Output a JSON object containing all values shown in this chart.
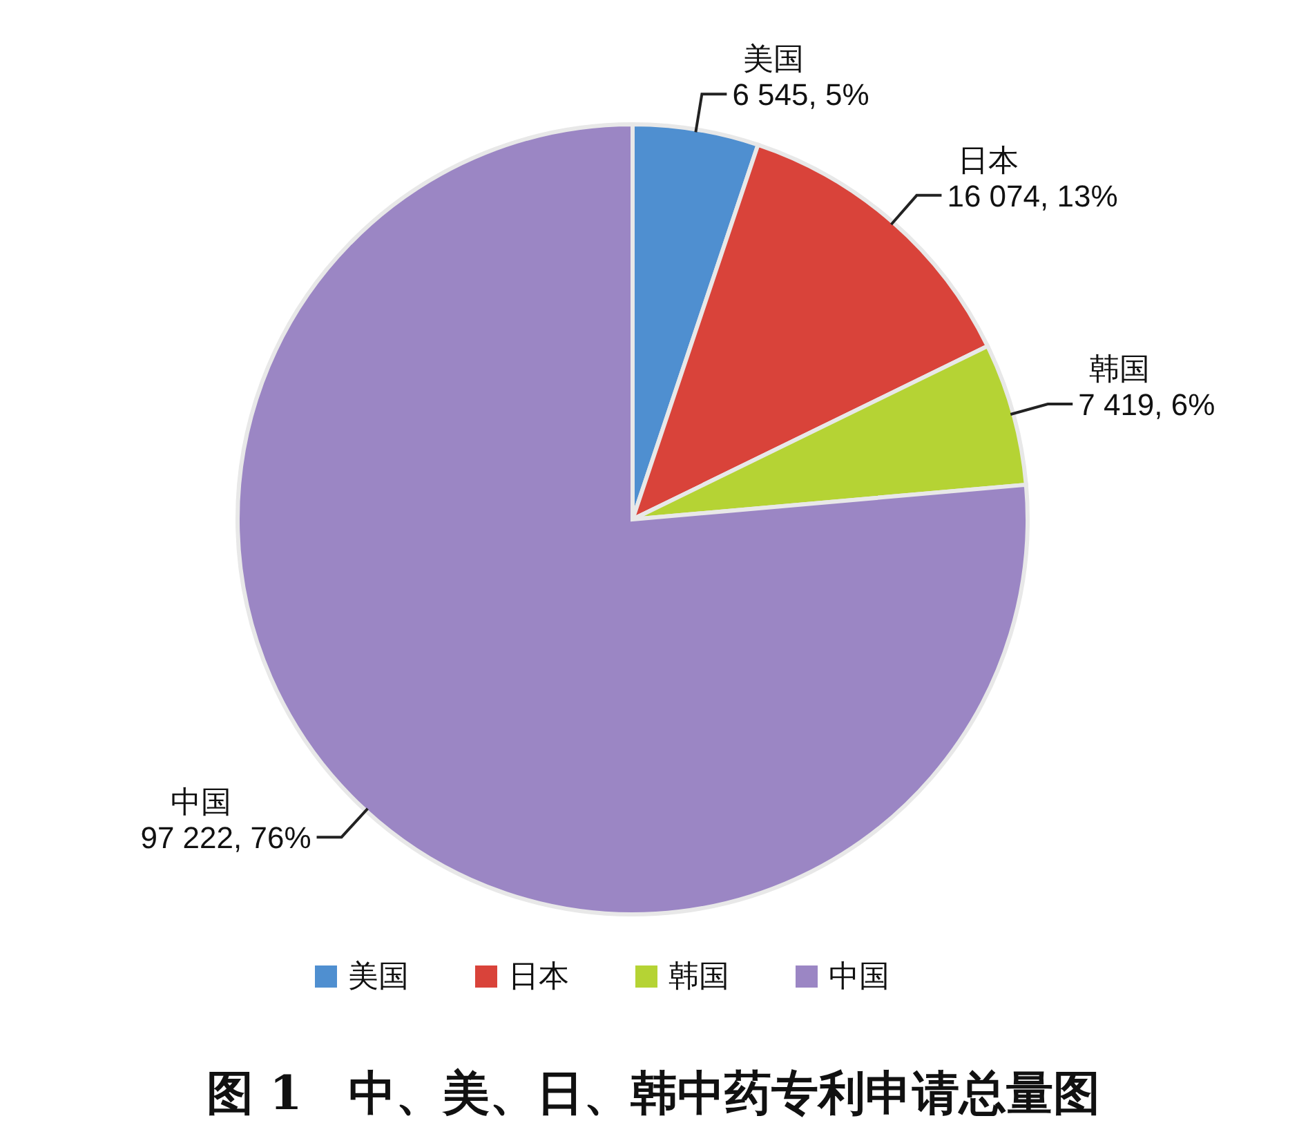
{
  "chart_data": {
    "type": "pie",
    "title": "图 1　中、美、日、韩中药专利申请总量图",
    "categories": [
      "美国",
      "日本",
      "韩国",
      "中国"
    ],
    "values": [
      6545,
      16074,
      7419,
      97222
    ],
    "value_labels": [
      "6 545, 5%",
      "16 074, 13%",
      "7 419, 6%",
      "97 222, 76%"
    ],
    "colors": [
      "#4f8fd0",
      "#d9433a",
      "#b5d334",
      "#9b86c4"
    ],
    "legend": "bottom"
  }
}
